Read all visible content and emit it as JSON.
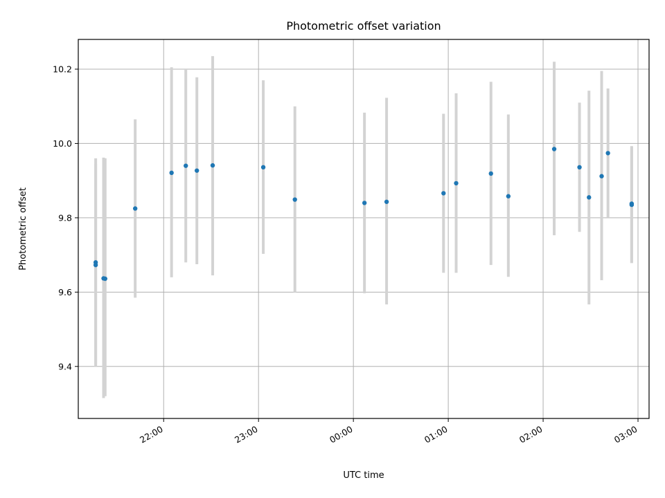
{
  "chart_data": {
    "type": "scatter",
    "title": "Photometric offset variation",
    "xlabel": "UTC time",
    "ylabel": "Photometric offset",
    "x_axis_type": "time",
    "x_ticks": [
      "22:00",
      "23:00",
      "00:00",
      "01:00",
      "02:00",
      "03:00"
    ],
    "y_ticks": [
      "9.4",
      "9.6",
      "9.8",
      "10.0",
      "10.2"
    ],
    "xlim": [
      "21:06",
      "03:07"
    ],
    "ylim": [
      9.26,
      10.28
    ],
    "grid": true,
    "colors": {
      "points": "#1f77b4",
      "errorbars": "#d3d3d3",
      "grid": "#b0b0b0"
    },
    "series": [
      {
        "x": [
          "21:17",
          "21:17",
          "21:22",
          "21:23",
          "21:42",
          "22:05",
          "22:14",
          "22:21",
          "22:31",
          "23:03",
          "23:23",
          "00:07",
          "00:21",
          "00:57",
          "01:05",
          "01:27",
          "01:38",
          "02:07",
          "02:23",
          "02:29",
          "02:37",
          "02:41",
          "02:56",
          "02:56"
        ],
        "y": [
          9.68,
          9.673,
          9.637,
          9.636,
          9.825,
          9.921,
          9.94,
          9.927,
          9.941,
          9.936,
          9.849,
          9.84,
          9.843,
          9.866,
          9.893,
          9.919,
          9.858,
          9.985,
          9.936,
          9.855,
          9.912,
          9.974,
          9.838,
          9.835
        ],
        "yerr_low": [
          9.4,
          9.405,
          9.315,
          9.32,
          9.585,
          9.64,
          9.68,
          9.675,
          9.645,
          9.703,
          9.6,
          9.597,
          9.567,
          9.652,
          9.652,
          9.673,
          9.641,
          9.753,
          9.762,
          9.567,
          9.632,
          9.8,
          9.678,
          9.68
        ],
        "yerr_high": [
          9.96,
          9.945,
          9.962,
          9.96,
          10.065,
          10.205,
          10.2,
          10.178,
          10.235,
          10.17,
          10.1,
          10.083,
          10.123,
          10.08,
          10.135,
          10.166,
          10.078,
          10.22,
          10.11,
          10.142,
          10.195,
          10.148,
          9.993,
          9.99
        ]
      }
    ]
  }
}
